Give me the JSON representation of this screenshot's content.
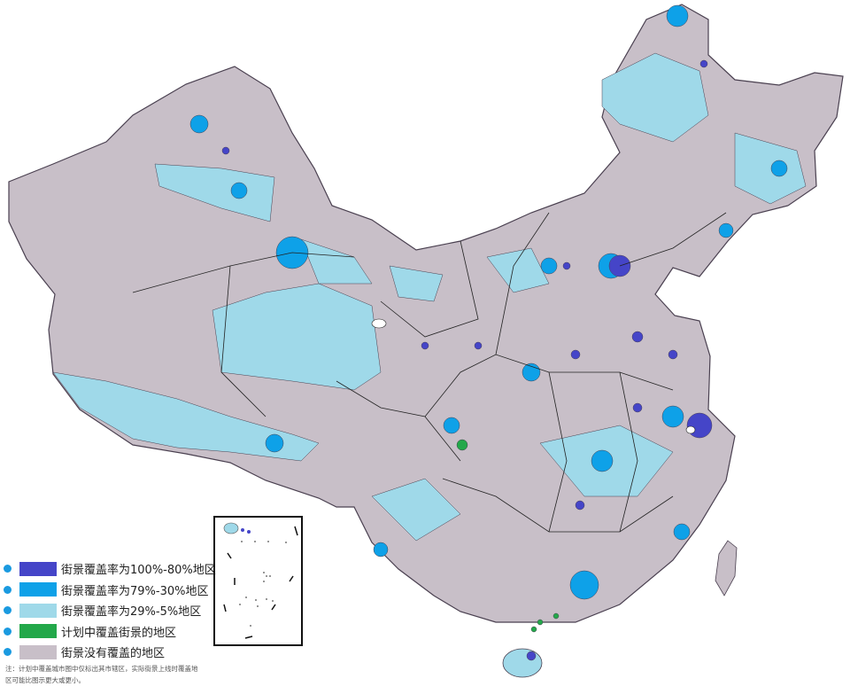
{
  "colors": {
    "coverage_100_80": "#4545c8",
    "coverage_79_30": "#0ea1e8",
    "coverage_29_5": "#9fd9e9",
    "planned": "#23a84a",
    "none": "#c8bfc8",
    "border": "#4a4050",
    "bullet": "#1a9ae0"
  },
  "legend": {
    "items": [
      {
        "label": "街景覆盖率为100%-80%地区",
        "color": "#4545c8"
      },
      {
        "label": "街景覆盖率为79%-30%地区",
        "color": "#0ea1e8"
      },
      {
        "label": "街景覆盖率为29%-5%地区",
        "color": "#9fd9e9"
      },
      {
        "label": "计划中覆盖街景的地区",
        "color": "#23a84a"
      },
      {
        "label": "街景没有覆盖的地区",
        "color": "#c8bfc8"
      }
    ]
  },
  "note": "注：计划中覆盖城市图中仅标出其市辖区，实际街景上线时覆盖地区可能比图示更大或更小。"
}
